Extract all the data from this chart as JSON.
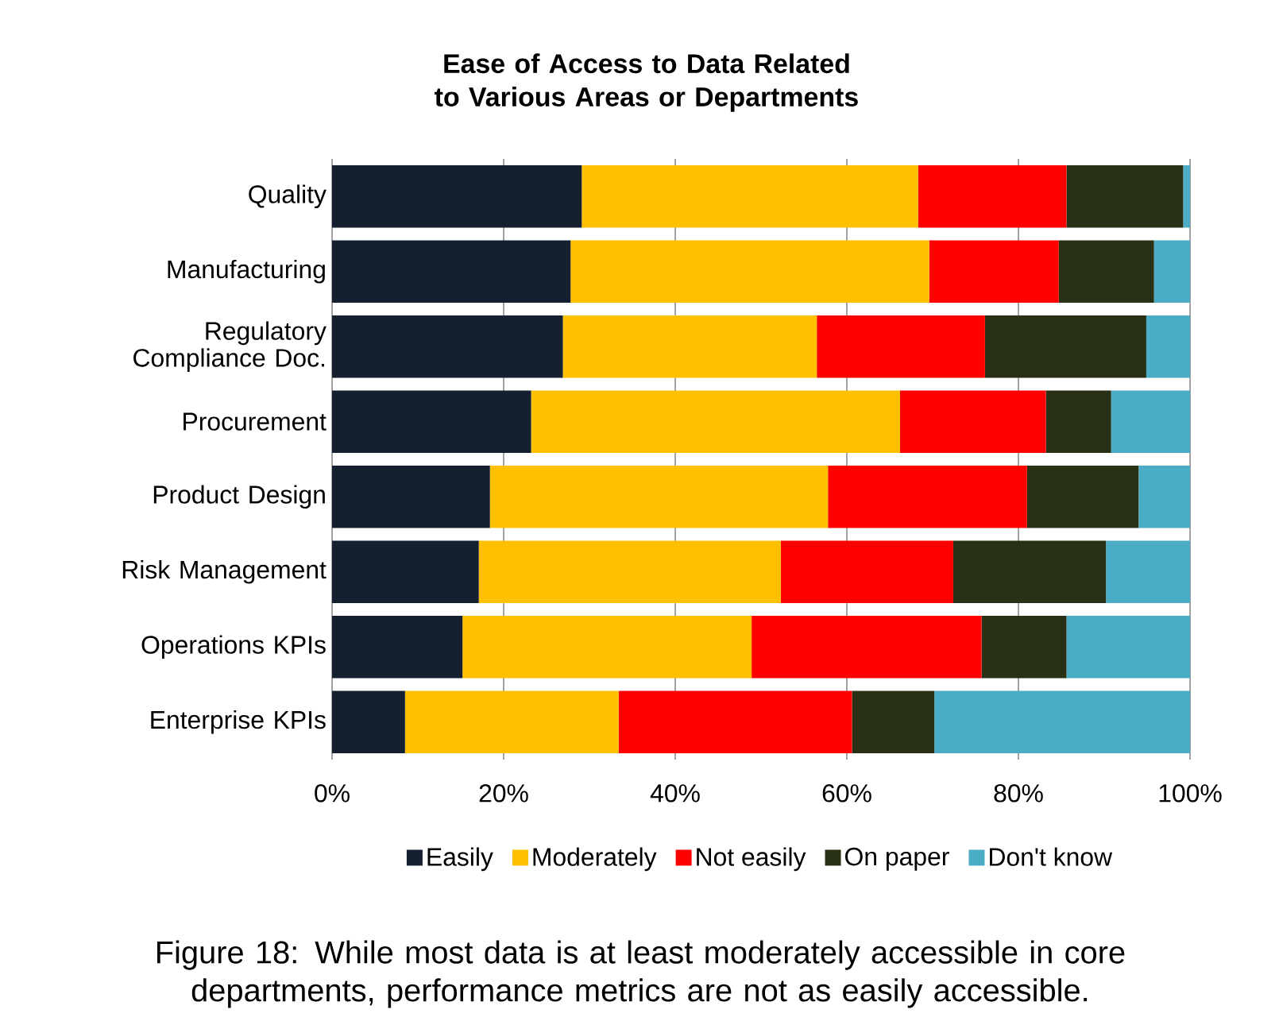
{
  "chart_data": {
    "type": "bar",
    "orientation": "horizontal",
    "stacked": true,
    "title": "Ease of Access to Data Related to Various Areas or Departments",
    "categories": [
      "Quality",
      "Manufacturing",
      "Regulatory Compliance Doc.",
      "Procurement",
      "Product Design",
      "Risk Management",
      "Operations KPIs",
      "Enterprise KPIs"
    ],
    "series": [
      {
        "name": "Easily",
        "color": "#14202f",
        "values": [
          29.1,
          27.8,
          26.9,
          23.2,
          18.4,
          17.1,
          15.2,
          8.5
        ]
      },
      {
        "name": "Moderately",
        "color": "#ffc000",
        "values": [
          39.2,
          41.8,
          29.6,
          43.0,
          39.4,
          35.2,
          33.7,
          24.9
        ]
      },
      {
        "name": "Not easily",
        "color": "#ff0000",
        "values": [
          17.3,
          15.1,
          19.6,
          17.0,
          23.2,
          20.1,
          26.8,
          27.2
        ]
      },
      {
        "name": "On paper",
        "color": "#283016",
        "values": [
          13.6,
          11.1,
          18.8,
          7.6,
          13.0,
          17.8,
          9.9,
          9.6
        ]
      },
      {
        "name": "Don't know",
        "color": "#4bacc6",
        "values": [
          0.8,
          4.2,
          5.1,
          9.2,
          6.0,
          9.8,
          14.4,
          29.8
        ]
      }
    ],
    "xlim": [
      0,
      100
    ],
    "xticks": [
      {
        "value": 0,
        "label": "0%"
      },
      {
        "value": 20,
        "label": "20%"
      },
      {
        "value": 40,
        "label": "40%"
      },
      {
        "value": 60,
        "label": "60%"
      },
      {
        "value": 80,
        "label": "80%"
      },
      {
        "value": 100,
        "label": "100%"
      }
    ],
    "grid": "x",
    "legend": "bottom",
    "annotations": [
      "Figure 18: While most data is at least moderately accessible in core departments, performance metrics are not as easily accessible."
    ]
  }
}
